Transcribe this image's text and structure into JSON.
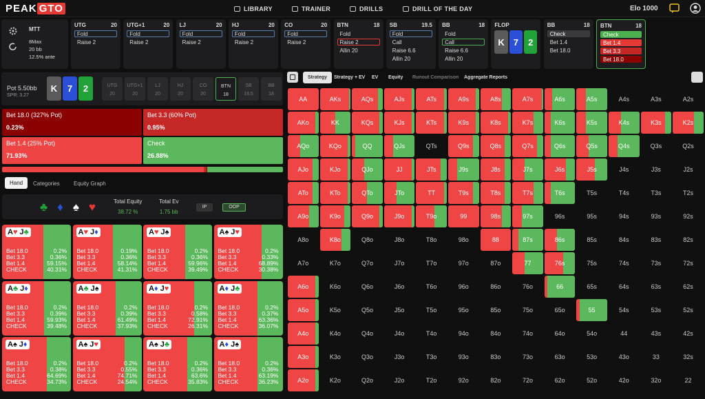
{
  "header": {
    "logo_a": "PEAK",
    "logo_b": "GTO",
    "nav": [
      "LIBRARY",
      "TRAINER",
      "DRILLS",
      "DRILL OF THE DAY"
    ],
    "elo_label": "Elo",
    "elo": "1000"
  },
  "game": {
    "title": "MTT",
    "lines": [
      "8Max",
      "20 bb",
      "12.5% ante"
    ]
  },
  "columns": [
    {
      "pos": "UTG",
      "stack": "20",
      "actions": [
        {
          "label": "Fold",
          "border": "#5b7fb0"
        },
        {
          "label": "Raise 2"
        }
      ]
    },
    {
      "pos": "UTG+1",
      "stack": "20",
      "actions": [
        {
          "label": "Fold",
          "border": "#5b7fb0"
        },
        {
          "label": "Raise 2"
        }
      ]
    },
    {
      "pos": "LJ",
      "stack": "20",
      "actions": [
        {
          "label": "Fold",
          "border": "#5b7fb0"
        },
        {
          "label": "Raise 2"
        }
      ]
    },
    {
      "pos": "HJ",
      "stack": "20",
      "actions": [
        {
          "label": "Fold",
          "border": "#5b7fb0"
        },
        {
          "label": "Raise 2"
        }
      ]
    },
    {
      "pos": "CO",
      "stack": "20",
      "actions": [
        {
          "label": "Fold",
          "border": "#5b7fb0"
        },
        {
          "label": "Raise 2"
        }
      ]
    },
    {
      "pos": "BTN",
      "stack": "18",
      "actions": [
        {
          "label": "Fold"
        },
        {
          "label": "Raise 2",
          "border": "#e53935"
        },
        {
          "label": "Allin 20"
        }
      ]
    },
    {
      "pos": "SB",
      "stack": "19.5",
      "actions": [
        {
          "label": "Fold",
          "border": "#5b7fb0"
        },
        {
          "label": "Call"
        },
        {
          "label": "Raise 6.6"
        },
        {
          "label": "Allin 20"
        }
      ]
    },
    {
      "pos": "BB",
      "stack": "18",
      "actions": [
        {
          "label": "Fold"
        },
        {
          "label": "Call",
          "border": "#4caf50"
        },
        {
          "label": "Raise 6.6"
        },
        {
          "label": "Allin 20"
        }
      ]
    },
    {
      "pos": "FLOP",
      "cards": [
        {
          "rank": "K",
          "bg": "#5a5a5a"
        },
        {
          "rank": "7",
          "bg": "#2b4fd6"
        },
        {
          "rank": "2",
          "bg": "#22a33a"
        }
      ]
    },
    {
      "pos": "BB",
      "stack": "18",
      "actions": [
        {
          "label": "Check",
          "bg": "#3a3a3c"
        },
        {
          "label": "Bet 1.4"
        },
        {
          "label": "Bet 18.0"
        }
      ]
    },
    {
      "pos": "BTN",
      "stack": "18",
      "active": true,
      "actions": [
        {
          "label": "Check",
          "bg": "#4caf50"
        },
        {
          "label": "Bet 1.4",
          "bg": "#e53935"
        },
        {
          "label": "Bet 3.3",
          "bg": "#c62828"
        },
        {
          "label": "Bet 18.0",
          "bg": "#8b0000"
        }
      ]
    }
  ],
  "pot": {
    "label": "Pot",
    "value": "5.50bb",
    "spr": "SPR: 3.27",
    "board": [
      {
        "rank": "K",
        "bg": "#5a5a5a"
      },
      {
        "rank": "7",
        "bg": "#2b4fd6"
      },
      {
        "rank": "2",
        "bg": "#22a33a"
      }
    ],
    "positions": [
      {
        "pos": "UTG",
        "stack": "20"
      },
      {
        "pos": "UTG+1",
        "stack": "20"
      },
      {
        "pos": "LJ",
        "stack": "20"
      },
      {
        "pos": "HJ",
        "stack": "20"
      },
      {
        "pos": "CO",
        "stack": "20"
      },
      {
        "pos": "BTN",
        "stack": "18",
        "selected": true
      },
      {
        "pos": "SB",
        "stack": "19.5"
      },
      {
        "pos": "BB",
        "stack": "18"
      }
    ]
  },
  "actions": [
    {
      "label": "Bet 18.0 (327% Pot)",
      "freq": "0.23%",
      "color": "#8b0000"
    },
    {
      "label": "Bet 3.3 (60% Pot)",
      "freq": "0.95%",
      "color": "#c62828"
    },
    {
      "label": "Bet 1.4 (25% Pot)",
      "freq": "71.93%",
      "color": "#ef4444"
    },
    {
      "label": "Check",
      "freq": "26.88%",
      "color": "#5cb85c"
    }
  ],
  "left_tabs": [
    "Hand",
    "Categories",
    "Equity Graph"
  ],
  "equity": {
    "suits": [
      {
        "s": "♣",
        "color": "#22a33a"
      },
      {
        "s": "♦",
        "color": "#2b4fd6"
      },
      {
        "s": "♠",
        "color": "#ffffff"
      },
      {
        "s": "♥",
        "color": "#e53935"
      }
    ],
    "total_equity_label": "Total Equity",
    "total_equity": "38.72 %",
    "total_ev_label": "Total Ev",
    "total_ev": "1.75 bb",
    "ip": "IP",
    "oop": "OOP"
  },
  "hand_actions": [
    "Bet 18.0",
    "Bet 3.3",
    "Bet 1.4",
    "CHECK"
  ],
  "hands": [
    {
      "cards": [
        {
          "r": "A",
          "s": "♥",
          "c": "#e53935"
        },
        {
          "r": "J",
          "s": "♣",
          "c": "#22a33a"
        }
      ],
      "freqs": [
        "0.2%",
        "0.36%",
        "59.15%",
        "40.31%"
      ]
    },
    {
      "cards": [
        {
          "r": "A",
          "s": "♥",
          "c": "#e53935"
        },
        {
          "r": "J",
          "s": "♦",
          "c": "#2b4fd6"
        }
      ],
      "freqs": [
        "0.19%",
        "0.36%",
        "58.14%",
        "41.31%"
      ]
    },
    {
      "cards": [
        {
          "r": "A",
          "s": "♥",
          "c": "#e53935"
        },
        {
          "r": "J",
          "s": "♠",
          "c": "#111111"
        }
      ],
      "freqs": [
        "0.2%",
        "0.36%",
        "59.96%",
        "39.49%"
      ]
    },
    {
      "cards": [
        {
          "r": "A",
          "s": "♠",
          "c": "#111111"
        },
        {
          "r": "J",
          "s": "♥",
          "c": "#e53935"
        }
      ],
      "freqs": [
        "0.2%",
        "0.33%",
        "68.89%",
        "30.38%"
      ]
    },
    {
      "cards": [
        {
          "r": "A",
          "s": "♣",
          "c": "#22a33a"
        },
        {
          "r": "J",
          "s": "♦",
          "c": "#2b4fd6"
        }
      ],
      "freqs": [
        "0.2%",
        "0.39%",
        "59.93%",
        "39.48%"
      ]
    },
    {
      "cards": [
        {
          "r": "A",
          "s": "♣",
          "c": "#22a33a"
        },
        {
          "r": "J",
          "s": "♠",
          "c": "#111111"
        }
      ],
      "freqs": [
        "0.2%",
        "0.39%",
        "61.49%",
        "37.93%"
      ]
    },
    {
      "cards": [
        {
          "r": "A",
          "s": "♦",
          "c": "#2b4fd6"
        },
        {
          "r": "J",
          "s": "♥",
          "c": "#e53935"
        }
      ],
      "freqs": [
        "0.2%",
        "0.58%",
        "72.91%",
        "26.31%"
      ]
    },
    {
      "cards": [
        {
          "r": "A",
          "s": "♦",
          "c": "#2b4fd6"
        },
        {
          "r": "J",
          "s": "♣",
          "c": "#22a33a"
        }
      ],
      "freqs": [
        "0.2%",
        "0.37%",
        "63.36%",
        "36.07%"
      ]
    },
    {
      "cards": [
        {
          "r": "A",
          "s": "♠",
          "c": "#111111"
        },
        {
          "r": "J",
          "s": "♦",
          "c": "#2b4fd6"
        }
      ],
      "freqs": [
        "0.2%",
        "0.38%",
        "64.69%",
        "34.73%"
      ]
    },
    {
      "cards": [
        {
          "r": "A",
          "s": "♠",
          "c": "#111111"
        },
        {
          "r": "J",
          "s": "♥",
          "c": "#e53935"
        }
      ],
      "freqs": [
        "0.2%",
        "0.55%",
        "74.71%",
        "24.54%"
      ]
    },
    {
      "cards": [
        {
          "r": "A",
          "s": "♠",
          "c": "#111111"
        },
        {
          "r": "J",
          "s": "♣",
          "c": "#22a33a"
        }
      ],
      "freqs": [
        "0.2%",
        "0.36%",
        "63.6%",
        "35.83%"
      ]
    },
    {
      "cards": [
        {
          "r": "A",
          "s": "♦",
          "c": "#2b4fd6"
        },
        {
          "r": "J",
          "s": "♠",
          "c": "#111111"
        }
      ],
      "freqs": [
        "0.2%",
        "0.36%",
        "63.19%",
        "36.23%"
      ]
    }
  ],
  "right_tabs": [
    "Strategy",
    "Strategy + EV",
    "EV",
    "Equity",
    "Runout Comparison",
    "Aggregate Reports"
  ],
  "matrix": {
    "labels": [
      [
        "AA",
        "AKs",
        "AQs",
        "AJs",
        "ATs",
        "A9s",
        "A8s",
        "A7s",
        "A6s",
        "A5s",
        "A4s",
        "A3s",
        "A2s"
      ],
      [
        "AKo",
        "KK",
        "KQs",
        "KJs",
        "KTs",
        "K9s",
        "K8s",
        "K7s",
        "K6s",
        "K5s",
        "K4s",
        "K3s",
        "K2s"
      ],
      [
        "AQo",
        "KQo",
        "QQ",
        "QJs",
        "QTs",
        "Q9s",
        "Q8s",
        "Q7s",
        "Q6s",
        "Q5s",
        "Q4s",
        "Q3s",
        "Q2s"
      ],
      [
        "AJo",
        "KJo",
        "QJo",
        "JJ",
        "JTs",
        "J9s",
        "J8s",
        "J7s",
        "J6s",
        "J5s",
        "J4s",
        "J3s",
        "J2s"
      ],
      [
        "ATo",
        "KTo",
        "QTo",
        "JTo",
        "TT",
        "T9s",
        "T8s",
        "T7s",
        "T6s",
        "T5s",
        "T4s",
        "T3s",
        "T2s"
      ],
      [
        "A9o",
        "K9o",
        "Q9o",
        "J9o",
        "T9o",
        "99",
        "98s",
        "97s",
        "96s",
        "95s",
        "94s",
        "93s",
        "92s"
      ],
      [
        "A8o",
        "K8o",
        "Q8o",
        "J8o",
        "T8o",
        "98o",
        "88",
        "87s",
        "86s",
        "85s",
        "84s",
        "83s",
        "82s"
      ],
      [
        "A7o",
        "K7o",
        "Q7o",
        "J7o",
        "T7o",
        "97o",
        "87o",
        "77",
        "76s",
        "75s",
        "74s",
        "73s",
        "72s"
      ],
      [
        "A6o",
        "K6o",
        "Q6o",
        "J6o",
        "T6o",
        "96o",
        "86o",
        "76o",
        "66",
        "65s",
        "64s",
        "63s",
        "62s"
      ],
      [
        "A5o",
        "K5o",
        "Q5o",
        "J5o",
        "T5o",
        "95o",
        "85o",
        "75o",
        "65o",
        "55",
        "54s",
        "53s",
        "52s"
      ],
      [
        "A4o",
        "K4o",
        "Q4o",
        "J4o",
        "T4o",
        "94o",
        "84o",
        "74o",
        "64o",
        "54o",
        "44",
        "43s",
        "42s"
      ],
      [
        "A3o",
        "K3o",
        "Q3o",
        "J3o",
        "T3o",
        "93o",
        "83o",
        "73o",
        "63o",
        "53o",
        "43o",
        "33",
        "32s"
      ],
      [
        "A2o",
        "K2o",
        "Q2o",
        "J2o",
        "T2o",
        "92o",
        "82o",
        "72o",
        "62o",
        "52o",
        "42o",
        "32o",
        "22"
      ]
    ],
    "check_share": [
      [
        0,
        0.05,
        0.15,
        0.1,
        0.1,
        0.1,
        0.3,
        0.05,
        0.75,
        0.7,
        null,
        null,
        null
      ],
      [
        0.1,
        0.5,
        0.1,
        0.1,
        0.1,
        0.1,
        0.1,
        0.3,
        0.8,
        0.7,
        0.6,
        0.2,
        0.3
      ],
      [
        0.6,
        0.1,
        0.9,
        0.7,
        null,
        0.2,
        0.2,
        0.2,
        0.8,
        0.6,
        0.7,
        null,
        null
      ],
      [
        0.2,
        0.1,
        0.6,
        0.1,
        0.2,
        0.7,
        0.2,
        0.6,
        0.3,
        0.4,
        null,
        null,
        null
      ],
      [
        0.2,
        0.1,
        0.5,
        0.6,
        0.1,
        0.2,
        0.2,
        0.3,
        0.8,
        null,
        null,
        null,
        null
      ],
      [
        0.3,
        0.2,
        0.1,
        0.1,
        0.4,
        0,
        0.3,
        0.7,
        null,
        null,
        null,
        null,
        null
      ],
      [
        null,
        0.3,
        null,
        null,
        null,
        null,
        0,
        0.8,
        0.6,
        null,
        null,
        null,
        null
      ],
      [
        null,
        null,
        null,
        null,
        null,
        null,
        null,
        0.6,
        0.4,
        null,
        null,
        null,
        null
      ],
      [
        0.1,
        null,
        null,
        null,
        null,
        null,
        null,
        null,
        0.9,
        null,
        null,
        null,
        null
      ],
      [
        0.1,
        null,
        null,
        null,
        null,
        null,
        null,
        null,
        null,
        0.9,
        null,
        null,
        null
      ],
      [
        0.1,
        null,
        null,
        null,
        null,
        null,
        null,
        null,
        null,
        null,
        null,
        null,
        null
      ],
      [
        0.1,
        null,
        null,
        null,
        null,
        null,
        null,
        null,
        null,
        null,
        null,
        null,
        null
      ],
      [
        0.1,
        null,
        null,
        null,
        null,
        null,
        null,
        null,
        null,
        null,
        null,
        null,
        null
      ]
    ],
    "bet_color": "#ef4545",
    "check_color": "#5cb85c"
  }
}
